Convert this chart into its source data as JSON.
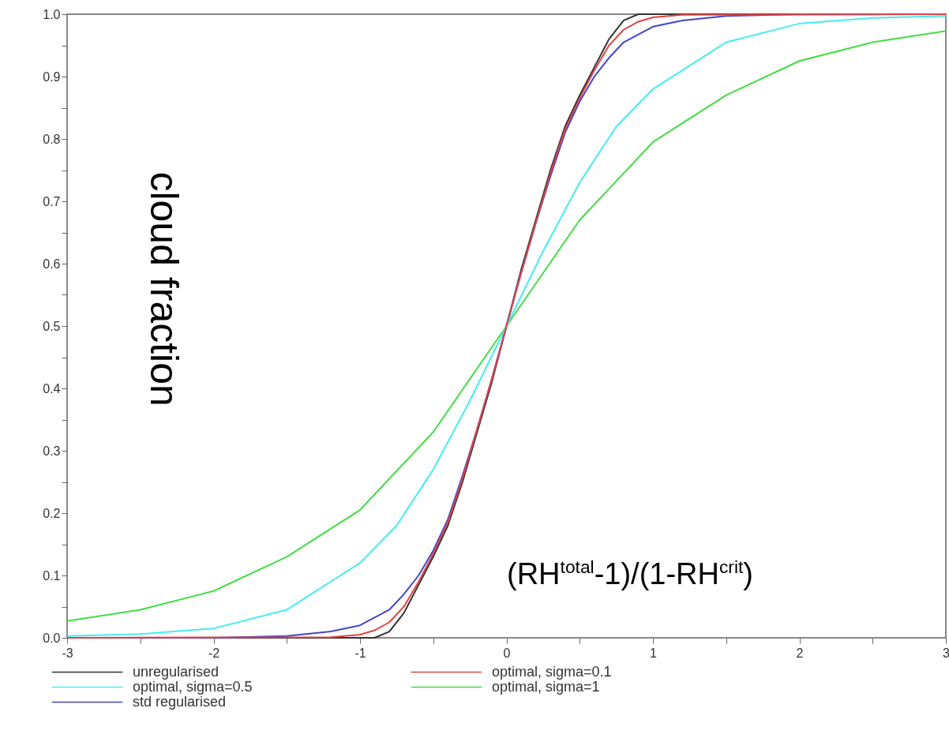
{
  "chart_data": {
    "type": "line",
    "xlabel": "(RH$^{total}$-1)/(1-RH$^{crit}$)",
    "ylabel": "cloud fraction",
    "xlim": [
      -3,
      3
    ],
    "ylim": [
      0,
      1
    ],
    "xticks": [
      -3,
      {
        "value": -2.5,
        "label": null
      },
      -2,
      {
        "value": -1.5,
        "label": null
      },
      -1,
      {
        "value": -0.5,
        "label": null
      },
      0,
      {
        "value": 0.5,
        "label": null
      },
      1,
      {
        "value": 1.5,
        "label": null
      },
      2,
      {
        "value": 2.5,
        "label": null
      },
      3
    ],
    "yticks": [
      {
        "value": 0,
        "label": "0.0"
      },
      {
        "value": 0.05,
        "label": null
      },
      {
        "value": 0.1,
        "label": "0.1"
      },
      {
        "value": 0.15,
        "label": null
      },
      {
        "value": 0.2,
        "label": "0.2"
      },
      {
        "value": 0.25,
        "label": null
      },
      {
        "value": 0.3,
        "label": "0.3"
      },
      {
        "value": 0.35,
        "label": null
      },
      {
        "value": 0.4,
        "label": "0.4"
      },
      {
        "value": 0.45,
        "label": null
      },
      {
        "value": 0.5,
        "label": "0.5"
      },
      {
        "value": 0.55,
        "label": null
      },
      {
        "value": 0.6,
        "label": "0.6"
      },
      {
        "value": 0.65,
        "label": null
      },
      {
        "value": 0.7,
        "label": "0.7"
      },
      {
        "value": 0.75,
        "label": null
      },
      {
        "value": 0.8,
        "label": "0.8"
      },
      {
        "value": 0.85,
        "label": null
      },
      {
        "value": 0.9,
        "label": "0.9"
      },
      {
        "value": 0.95,
        "label": null
      },
      {
        "value": 1,
        "label": "1.0"
      }
    ],
    "grid": false,
    "legend": "bottom",
    "line_style": "solid",
    "marker": "none",
    "series": [
      {
        "name": "unregularised",
        "color": "#333333",
        "x": [
          -3,
          -0.9,
          -0.8,
          -0.7,
          -0.6,
          -0.5,
          -0.4,
          -0.3,
          -0.2,
          -0.1,
          0,
          0.1,
          0.2,
          0.3,
          0.4,
          0.5,
          0.6,
          0.7,
          0.8,
          0.9,
          3
        ],
        "values": [
          0,
          0,
          0.01,
          0.04,
          0.085,
          0.13,
          0.18,
          0.25,
          0.33,
          0.41,
          0.5,
          0.59,
          0.67,
          0.75,
          0.82,
          0.87,
          0.915,
          0.96,
          0.99,
          1,
          1
        ]
      },
      {
        "name": "std regularised",
        "color": "#4444cc",
        "x": [
          -3,
          -2,
          -1.5,
          -1.2,
          -1,
          -0.8,
          -0.7,
          -0.6,
          -0.5,
          -0.4,
          -0.3,
          -0.2,
          -0.1,
          0,
          0.1,
          0.2,
          0.3,
          0.4,
          0.5,
          0.6,
          0.7,
          0.8,
          1,
          1.2,
          1.5,
          2,
          3
        ],
        "values": [
          0,
          0,
          0.003,
          0.01,
          0.02,
          0.045,
          0.07,
          0.1,
          0.14,
          0.19,
          0.26,
          0.335,
          0.415,
          0.5,
          0.585,
          0.665,
          0.74,
          0.81,
          0.86,
          0.9,
          0.93,
          0.955,
          0.98,
          0.99,
          0.997,
          1,
          1
        ]
      },
      {
        "name": "optimal, sigma=1",
        "color": "#44dd44",
        "x": [
          -3,
          -2.5,
          -2,
          -1.5,
          -1,
          -0.5,
          0,
          0.5,
          1,
          1.5,
          2,
          2.5,
          3
        ],
        "values": [
          0.027,
          0.045,
          0.075,
          0.13,
          0.205,
          0.33,
          0.5,
          0.67,
          0.795,
          0.87,
          0.925,
          0.955,
          0.973
        ]
      },
      {
        "name": "optimal, sigma=0.5",
        "color": "#44eeee",
        "x": [
          -3,
          -2.5,
          -2,
          -1.5,
          -1,
          -0.75,
          -0.5,
          -0.25,
          0,
          0.25,
          0.5,
          0.75,
          1,
          1.5,
          2,
          2.5,
          3
        ],
        "values": [
          0.003,
          0.006,
          0.015,
          0.045,
          0.12,
          0.18,
          0.27,
          0.38,
          0.5,
          0.62,
          0.73,
          0.82,
          0.88,
          0.955,
          0.985,
          0.994,
          0.997
        ]
      },
      {
        "name": "optimal, sigma=0.1",
        "color": "#dd4444",
        "x": [
          -3,
          -1.2,
          -1,
          -0.9,
          -0.8,
          -0.7,
          -0.6,
          -0.5,
          -0.4,
          -0.3,
          -0.2,
          -0.1,
          0,
          0.1,
          0.2,
          0.3,
          0.4,
          0.5,
          0.6,
          0.7,
          0.8,
          0.9,
          1,
          1.2,
          3
        ],
        "values": [
          0,
          0.001,
          0.005,
          0.012,
          0.025,
          0.05,
          0.09,
          0.135,
          0.185,
          0.255,
          0.335,
          0.415,
          0.5,
          0.585,
          0.665,
          0.745,
          0.815,
          0.865,
          0.91,
          0.95,
          0.975,
          0.988,
          0.995,
          0.999,
          1
        ]
      }
    ]
  }
}
